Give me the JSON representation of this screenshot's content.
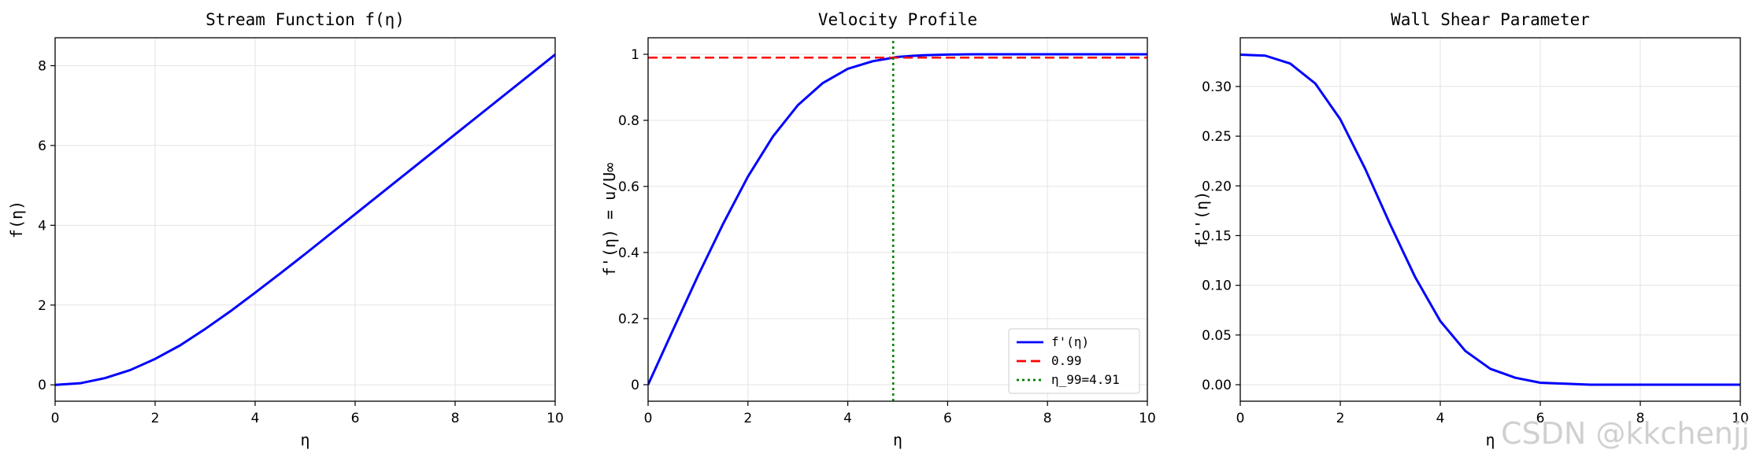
{
  "chart_data": [
    {
      "type": "line",
      "title": "Stream Function f(η)",
      "xlabel": "η",
      "ylabel": "f(η)",
      "xlim": [
        0,
        10
      ],
      "ylim": [
        -0.41,
        8.7
      ],
      "xticks": [
        0,
        2,
        4,
        6,
        8,
        10
      ],
      "yticks": [
        0,
        2,
        4,
        6,
        8
      ],
      "grid": true,
      "series": [
        {
          "x": [
            0,
            0.5,
            1,
            1.5,
            2,
            2.5,
            3,
            3.5,
            4,
            4.5,
            5,
            5.5,
            6,
            6.5,
            7,
            7.5,
            8,
            8.5,
            9,
            9.5,
            10
          ],
          "y": [
            0,
            0.04,
            0.17,
            0.37,
            0.65,
            0.99,
            1.4,
            1.84,
            2.31,
            2.79,
            3.28,
            3.78,
            4.28,
            4.78,
            5.28,
            5.78,
            6.28,
            6.78,
            7.28,
            7.78,
            8.28
          ],
          "color": "#0000ff"
        }
      ]
    },
    {
      "type": "line",
      "title": "Velocity Profile",
      "xlabel": "η",
      "ylabel": "f'(η) = u/U∞",
      "xlim": [
        0,
        10
      ],
      "ylim": [
        -0.05,
        1.05
      ],
      "xticks": [
        0,
        2,
        4,
        6,
        8,
        10
      ],
      "yticks": [
        0.0,
        0.2,
        0.4,
        0.6,
        0.8,
        1.0
      ],
      "grid": true,
      "legend_position": "lower-right",
      "series": [
        {
          "name": "f'(η)",
          "style": "solid",
          "color": "#0000ff",
          "x": [
            0,
            0.5,
            1,
            1.5,
            2,
            2.5,
            3,
            3.5,
            4,
            4.5,
            5,
            5.5,
            6,
            6.5,
            7,
            8,
            9,
            10
          ],
          "y": [
            0,
            0.166,
            0.33,
            0.486,
            0.63,
            0.751,
            0.846,
            0.913,
            0.956,
            0.979,
            0.992,
            0.997,
            0.999,
            1.0,
            1.0,
            1.0,
            1.0,
            1.0
          ]
        },
        {
          "name": "0.99",
          "style": "dashed",
          "color": "#ff0000",
          "x": [
            0,
            10
          ],
          "y": [
            0.99,
            0.99
          ]
        },
        {
          "name": "η_99=4.91",
          "style": "dotted",
          "color": "#008000",
          "x": [
            4.91,
            4.91
          ],
          "y": [
            -0.05,
            1.05
          ]
        }
      ]
    },
    {
      "type": "line",
      "title": "Wall Shear Parameter",
      "xlabel": "η",
      "ylabel": "f''(η)",
      "xlim": [
        0,
        10
      ],
      "ylim": [
        -0.0166,
        0.349
      ],
      "xticks": [
        0,
        2,
        4,
        6,
        8,
        10
      ],
      "yticks": [
        0.0,
        0.05,
        0.1,
        0.15,
        0.2,
        0.25,
        0.3
      ],
      "ytick_labels": [
        "0.00",
        "0.05",
        "0.10",
        "0.15",
        "0.20",
        "0.25",
        "0.30"
      ],
      "grid": true,
      "series": [
        {
          "x": [
            0,
            0.5,
            1,
            1.5,
            2,
            2.5,
            3,
            3.5,
            4,
            4.5,
            5,
            5.5,
            6,
            6.5,
            7,
            8,
            9,
            10
          ],
          "y": [
            0.332,
            0.331,
            0.323,
            0.303,
            0.267,
            0.217,
            0.161,
            0.108,
            0.064,
            0.034,
            0.016,
            0.007,
            0.002,
            0.001,
            0.0,
            0.0,
            0.0,
            0.0
          ],
          "color": "#0000ff"
        }
      ]
    }
  ],
  "watermark": "CSDN @kkchenjj"
}
